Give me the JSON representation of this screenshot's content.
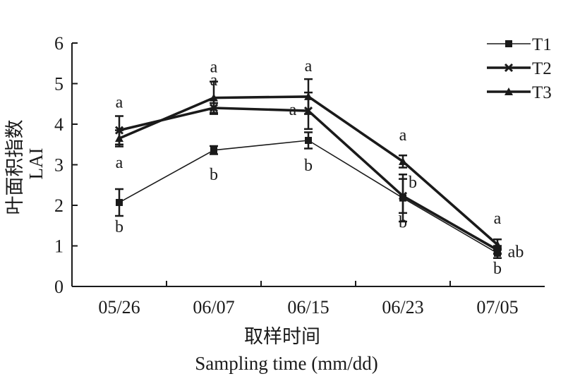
{
  "chart_data": {
    "type": "line",
    "ylabel_cn": "叶面积指数",
    "ylabel_en": "LAI",
    "xlabel_cn": "取样时间",
    "xlabel_en": "Sampling time (mm/dd)",
    "categories": [
      "05/26",
      "06/07",
      "06/15",
      "06/23",
      "07/05"
    ],
    "yticks": [
      "0",
      "1",
      "2",
      "3",
      "4",
      "5",
      "6"
    ],
    "ylim": [
      0,
      6
    ],
    "legend_position": "top-right",
    "series": [
      {
        "name": "T1",
        "marker": "square",
        "line_width": "thin",
        "values": [
          2.07,
          3.36,
          3.6,
          2.18,
          0.82
        ],
        "errors": [
          0.33,
          0.1,
          0.2,
          0.58,
          0.12
        ],
        "significance": [
          "b",
          "b",
          "b",
          "b",
          "b"
        ]
      },
      {
        "name": "T2",
        "marker": "cross",
        "line_width": "thick",
        "values": [
          3.85,
          4.4,
          4.33,
          2.23,
          0.9
        ],
        "errors": [
          0.35,
          0.12,
          0.45,
          0.42,
          0.1
        ],
        "significance": [
          "a",
          "a",
          "a",
          "b",
          "ab"
        ]
      },
      {
        "name": "T3",
        "marker": "triangle",
        "line_width": "thick",
        "values": [
          3.65,
          4.65,
          4.68,
          3.08,
          1.03
        ],
        "errors": [
          0.2,
          0.4,
          0.43,
          0.15,
          0.13
        ],
        "significance": [
          "a",
          "a",
          "a",
          "a",
          "a"
        ]
      }
    ]
  }
}
